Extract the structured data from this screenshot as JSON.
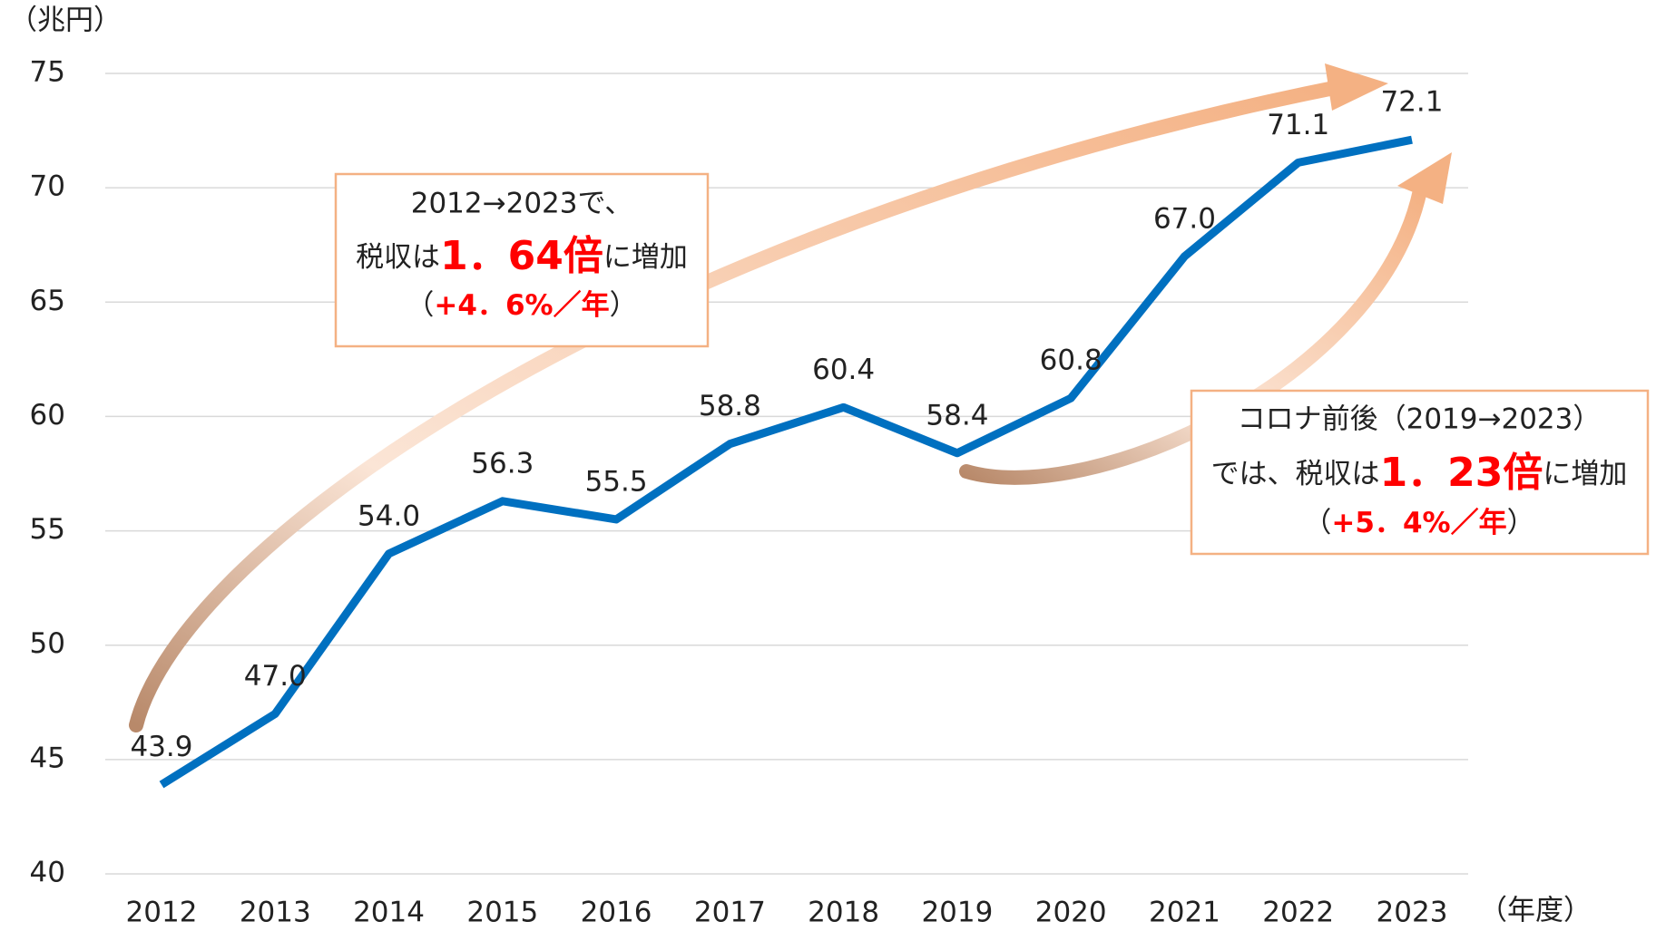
{
  "chart_data": {
    "type": "line",
    "y_unit": "（兆円）",
    "x_unit": "（年度）",
    "categories": [
      "2012",
      "2013",
      "2014",
      "2015",
      "2016",
      "2017",
      "2018",
      "2019",
      "2020",
      "2021",
      "2022",
      "2023"
    ],
    "series": [
      {
        "color": "#0070c0",
        "values": [
          43.9,
          47.0,
          54.0,
          56.3,
          55.5,
          58.8,
          60.4,
          58.4,
          60.8,
          67.0,
          71.1,
          72.1
        ],
        "value_labels": [
          "43.9",
          "47.0",
          "54.0",
          "56.3",
          "55.5",
          "58.8",
          "60.4",
          "58.4",
          "60.8",
          "67.0",
          "71.1",
          "72.1"
        ]
      }
    ],
    "ylim": [
      40,
      75
    ],
    "yticks": [
      40,
      45,
      50,
      55,
      60,
      65,
      70,
      75
    ],
    "grid": true,
    "annotations": [
      {
        "line1": "2012→2023で、",
        "line2_pre": "税収は",
        "line2_emph": "1．64倍",
        "line2_post": "に増加",
        "line3_open": "（",
        "line3_emph": "+4．6%／年",
        "line3_close": "）"
      },
      {
        "line1": "コロナ前後（2019→2023）",
        "line2_pre": "では、税収は",
        "line2_emph": "1．23倍",
        "line2_post": "に増加",
        "line3_open": "（",
        "line3_emph": "+5．4%／年",
        "line3_close": "）"
      }
    ]
  }
}
